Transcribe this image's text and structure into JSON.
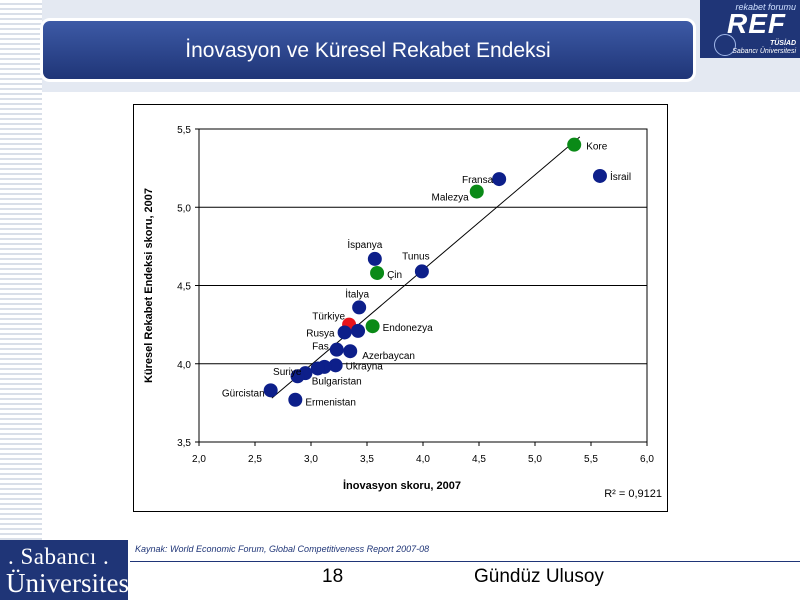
{
  "slide": {
    "title": "İnovasyon ve Küresel Rekabet Endeksi",
    "source": "Kaynak: World Economic Forum, Global Competitiveness Report 2007-08",
    "page_number": "18",
    "author": "Gündüz Ulusoy"
  },
  "ref_logo": {
    "small_text": "rekabet forumu",
    "big_text": "REF",
    "tag1": "TÜSİAD",
    "tag2": "Sabancı Üniversitesi"
  },
  "su_logo": {
    "line1": ". Sabancı .",
    "line2": "Üniversitesi"
  },
  "colors": {
    "title_bar": "#2a4590",
    "point_default": "#0d1f8a",
    "point_highlight": "#0a8a17",
    "point_turkey": "#e8141c"
  },
  "chart_data": {
    "type": "scatter",
    "title": "",
    "xlabel": "İnovasyon skoru, 2007",
    "ylabel": "Küresel Rekabet Endeksi skoru, 2007",
    "xlim": [
      2.0,
      6.0
    ],
    "ylim": [
      3.5,
      5.5
    ],
    "xticks": [
      "2,0",
      "2,5",
      "3,0",
      "3,5",
      "4,0",
      "4,5",
      "5,0",
      "5,5",
      "6,0"
    ],
    "yticks": [
      "3,5",
      "4,0",
      "4,5",
      "5,0",
      "5,5"
    ],
    "grid": "horizontal",
    "r2_label": "R² = 0,9121",
    "trendline": {
      "x": [
        2.65,
        5.4
      ],
      "y": [
        3.78,
        5.45
      ]
    },
    "points": [
      {
        "label": "Kore",
        "x": 5.35,
        "y": 5.4,
        "group": "highlight"
      },
      {
        "label": "İsrail",
        "x": 5.58,
        "y": 5.2,
        "group": "default"
      },
      {
        "label": "Fransa",
        "x": 4.68,
        "y": 5.18,
        "group": "default"
      },
      {
        "label": "Malezya",
        "x": 4.48,
        "y": 5.1,
        "group": "highlight"
      },
      {
        "label": "İspanya",
        "x": 3.57,
        "y": 4.67,
        "group": "default"
      },
      {
        "label": "Tunus",
        "x": 3.99,
        "y": 4.59,
        "group": "default"
      },
      {
        "label": "Çin",
        "x": 3.59,
        "y": 4.58,
        "group": "highlight"
      },
      {
        "label": "İtalya",
        "x": 3.43,
        "y": 4.36,
        "group": "default"
      },
      {
        "label": "Türkiye",
        "x": 3.34,
        "y": 4.25,
        "group": "turkey"
      },
      {
        "label": "Endonezya",
        "x": 3.55,
        "y": 4.24,
        "group": "highlight"
      },
      {
        "label": "Rusya",
        "x": 3.3,
        "y": 4.2,
        "group": "default"
      },
      {
        "label": "",
        "x": 3.42,
        "y": 4.21,
        "group": "default"
      },
      {
        "label": "Fas",
        "x": 3.23,
        "y": 4.09,
        "group": "default"
      },
      {
        "label": "Azerbaycan",
        "x": 3.35,
        "y": 4.08,
        "group": "default"
      },
      {
        "label": "Ukrayna",
        "x": 3.22,
        "y": 3.99,
        "group": "default"
      },
      {
        "label": "",
        "x": 3.12,
        "y": 3.98,
        "group": "default"
      },
      {
        "label": "Bulgaristan",
        "x": 3.06,
        "y": 3.97,
        "group": "default"
      },
      {
        "label": "Suriye",
        "x": 2.95,
        "y": 3.94,
        "group": "default"
      },
      {
        "label": "",
        "x": 2.88,
        "y": 3.92,
        "group": "default"
      },
      {
        "label": "Gürcistan",
        "x": 2.64,
        "y": 3.83,
        "group": "default"
      },
      {
        "label": "Ermenistan",
        "x": 2.86,
        "y": 3.77,
        "group": "default"
      }
    ]
  }
}
